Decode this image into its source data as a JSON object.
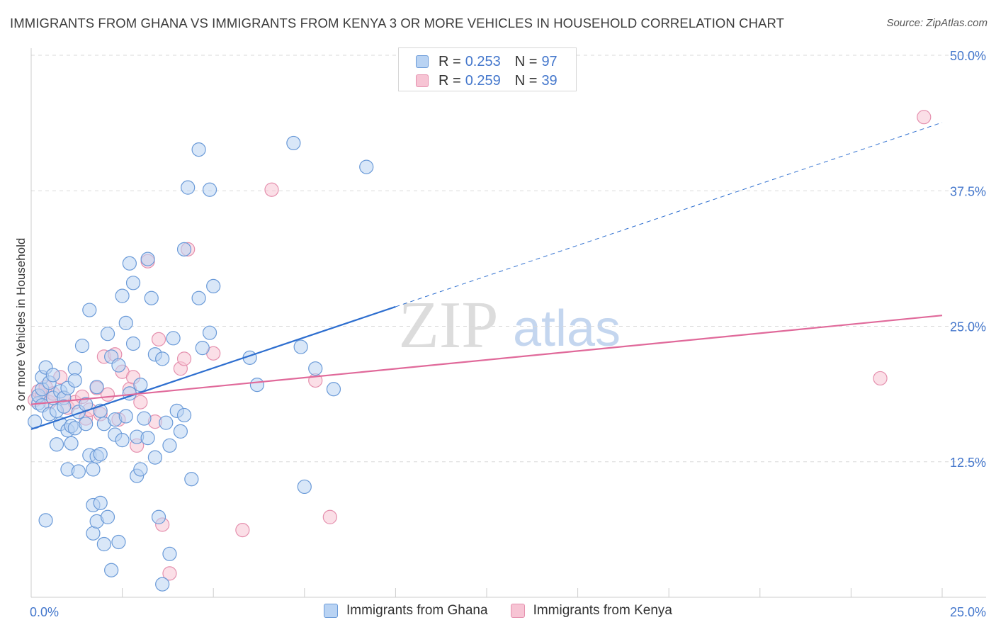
{
  "header": {
    "title": "IMMIGRANTS FROM GHANA VS IMMIGRANTS FROM KENYA 3 OR MORE VEHICLES IN HOUSEHOLD CORRELATION CHART",
    "source": "Source: ZipAtlas.com"
  },
  "legend": {
    "ghana": {
      "r_label": "R =",
      "r_value": "0.253",
      "n_label": "N =",
      "n_value": "97"
    },
    "kenya": {
      "r_label": "R =",
      "r_value": "0.259",
      "n_label": "N =",
      "n_value": "39"
    }
  },
  "watermark": {
    "zip": "ZIP",
    "atlas": "atlas"
  },
  "colors": {
    "ghana_fill": "#b9d3f3",
    "ghana_stroke": "#6a9ad8",
    "ghana_line": "#2d6ecf",
    "kenya_fill": "#f7c4d4",
    "kenya_stroke": "#e590ae",
    "kenya_line": "#e0699a",
    "tick_label": "#4477cc",
    "grid": "#d9d9d9"
  },
  "chart_data": {
    "type": "scatter",
    "title": "IMMIGRANTS FROM GHANA VS IMMIGRANTS FROM KENYA 3 OR MORE VEHICLES IN HOUSEHOLD CORRELATION CHART",
    "xlabel": "",
    "ylabel": "3 or more Vehicles in Household",
    "xlim": [
      0,
      25
    ],
    "ylim": [
      0,
      50
    ],
    "x_tick_labels": [
      "0.0%",
      "25.0%"
    ],
    "y_ticks": [
      12.5,
      25.0,
      37.5,
      50.0
    ],
    "y_tick_labels": [
      "12.5%",
      "25.0%",
      "37.5%",
      "50.0%"
    ],
    "grid": true,
    "legend_position": "top-center",
    "series": [
      {
        "name": "Immigrants from Ghana",
        "r": 0.253,
        "n": 97,
        "trend": {
          "x": [
            0,
            10
          ],
          "y": [
            15.5,
            26.8
          ],
          "dashed_to": [
            25,
            43.8
          ]
        },
        "points": [
          [
            0.1,
            16.2
          ],
          [
            0.2,
            17.9
          ],
          [
            0.2,
            18.6
          ],
          [
            0.3,
            19.2
          ],
          [
            0.3,
            20.3
          ],
          [
            0.3,
            17.7
          ],
          [
            0.4,
            7.1
          ],
          [
            0.4,
            21.2
          ],
          [
            0.5,
            19.8
          ],
          [
            0.5,
            16.9
          ],
          [
            0.6,
            20.5
          ],
          [
            0.6,
            18.4
          ],
          [
            0.7,
            17.2
          ],
          [
            0.7,
            14.1
          ],
          [
            0.8,
            16.0
          ],
          [
            0.8,
            19.0
          ],
          [
            0.9,
            18.4
          ],
          [
            0.9,
            17.6
          ],
          [
            1.0,
            19.3
          ],
          [
            1.0,
            15.4
          ],
          [
            1.0,
            11.8
          ],
          [
            1.1,
            15.8
          ],
          [
            1.1,
            14.2
          ],
          [
            1.2,
            21.1
          ],
          [
            1.2,
            20.0
          ],
          [
            1.2,
            15.6
          ],
          [
            1.3,
            11.6
          ],
          [
            1.3,
            17.1
          ],
          [
            1.4,
            23.2
          ],
          [
            1.5,
            16.0
          ],
          [
            1.5,
            17.8
          ],
          [
            1.6,
            26.5
          ],
          [
            1.6,
            13.1
          ],
          [
            1.7,
            11.8
          ],
          [
            1.7,
            8.5
          ],
          [
            1.7,
            5.9
          ],
          [
            1.8,
            19.4
          ],
          [
            1.8,
            13.0
          ],
          [
            1.8,
            7.0
          ],
          [
            1.9,
            17.2
          ],
          [
            1.9,
            13.2
          ],
          [
            1.9,
            8.7
          ],
          [
            2.0,
            16.0
          ],
          [
            2.0,
            4.9
          ],
          [
            2.1,
            24.3
          ],
          [
            2.1,
            7.4
          ],
          [
            2.2,
            22.2
          ],
          [
            2.2,
            2.5
          ],
          [
            2.3,
            15.0
          ],
          [
            2.3,
            16.4
          ],
          [
            2.4,
            21.4
          ],
          [
            2.4,
            5.1
          ],
          [
            2.5,
            27.8
          ],
          [
            2.5,
            14.5
          ],
          [
            2.6,
            25.3
          ],
          [
            2.6,
            16.7
          ],
          [
            2.7,
            30.8
          ],
          [
            2.7,
            18.8
          ],
          [
            2.8,
            29.0
          ],
          [
            2.8,
            23.4
          ],
          [
            2.9,
            14.8
          ],
          [
            2.9,
            11.2
          ],
          [
            3.0,
            19.6
          ],
          [
            3.0,
            11.8
          ],
          [
            3.1,
            16.5
          ],
          [
            3.2,
            14.7
          ],
          [
            3.2,
            31.2
          ],
          [
            3.3,
            27.6
          ],
          [
            3.4,
            12.9
          ],
          [
            3.4,
            22.4
          ],
          [
            3.5,
            7.4
          ],
          [
            3.6,
            22.0
          ],
          [
            3.6,
            1.2
          ],
          [
            3.7,
            16.1
          ],
          [
            3.8,
            4.0
          ],
          [
            3.8,
            14.0
          ],
          [
            3.9,
            23.9
          ],
          [
            4.0,
            17.2
          ],
          [
            4.1,
            15.3
          ],
          [
            4.2,
            16.8
          ],
          [
            4.2,
            32.1
          ],
          [
            4.3,
            37.8
          ],
          [
            4.4,
            10.9
          ],
          [
            4.6,
            41.3
          ],
          [
            4.6,
            27.6
          ],
          [
            4.7,
            23.0
          ],
          [
            4.9,
            37.6
          ],
          [
            4.9,
            24.4
          ],
          [
            5.0,
            28.7
          ],
          [
            6.0,
            22.1
          ],
          [
            6.2,
            19.6
          ],
          [
            7.2,
            41.9
          ],
          [
            7.4,
            23.1
          ],
          [
            7.5,
            10.2
          ],
          [
            7.8,
            21.1
          ],
          [
            8.3,
            19.2
          ],
          [
            9.2,
            39.7
          ]
        ]
      },
      {
        "name": "Immigrants from Kenya",
        "r": 0.259,
        "n": 39,
        "trend": {
          "x": [
            0,
            25
          ],
          "y": [
            17.8,
            26.0
          ]
        },
        "points": [
          [
            0.1,
            18.2
          ],
          [
            0.2,
            19.0
          ],
          [
            0.3,
            18.6
          ],
          [
            0.4,
            19.4
          ],
          [
            0.5,
            18.0
          ],
          [
            0.6,
            18.8
          ],
          [
            0.8,
            20.3
          ],
          [
            0.9,
            18.4
          ],
          [
            1.0,
            17.5
          ],
          [
            1.2,
            18.0
          ],
          [
            1.4,
            18.5
          ],
          [
            1.5,
            16.5
          ],
          [
            1.6,
            17.3
          ],
          [
            1.8,
            19.3
          ],
          [
            1.9,
            16.9
          ],
          [
            2.0,
            22.2
          ],
          [
            2.1,
            18.7
          ],
          [
            2.3,
            22.4
          ],
          [
            2.4,
            16.4
          ],
          [
            2.5,
            20.8
          ],
          [
            2.7,
            19.2
          ],
          [
            2.8,
            20.3
          ],
          [
            2.9,
            14.0
          ],
          [
            3.0,
            18.0
          ],
          [
            3.2,
            31.0
          ],
          [
            3.4,
            16.2
          ],
          [
            3.5,
            23.8
          ],
          [
            3.6,
            6.7
          ],
          [
            3.8,
            2.2
          ],
          [
            4.1,
            21.1
          ],
          [
            4.2,
            22.0
          ],
          [
            4.3,
            32.1
          ],
          [
            5.0,
            22.5
          ],
          [
            5.8,
            6.2
          ],
          [
            6.6,
            37.6
          ],
          [
            7.8,
            20.0
          ],
          [
            8.2,
            7.4
          ],
          [
            23.3,
            20.2
          ],
          [
            24.5,
            44.3
          ]
        ]
      }
    ]
  },
  "bottom_legend": {
    "ghana_label": "Immigrants from Ghana",
    "kenya_label": "Immigrants from Kenya"
  }
}
